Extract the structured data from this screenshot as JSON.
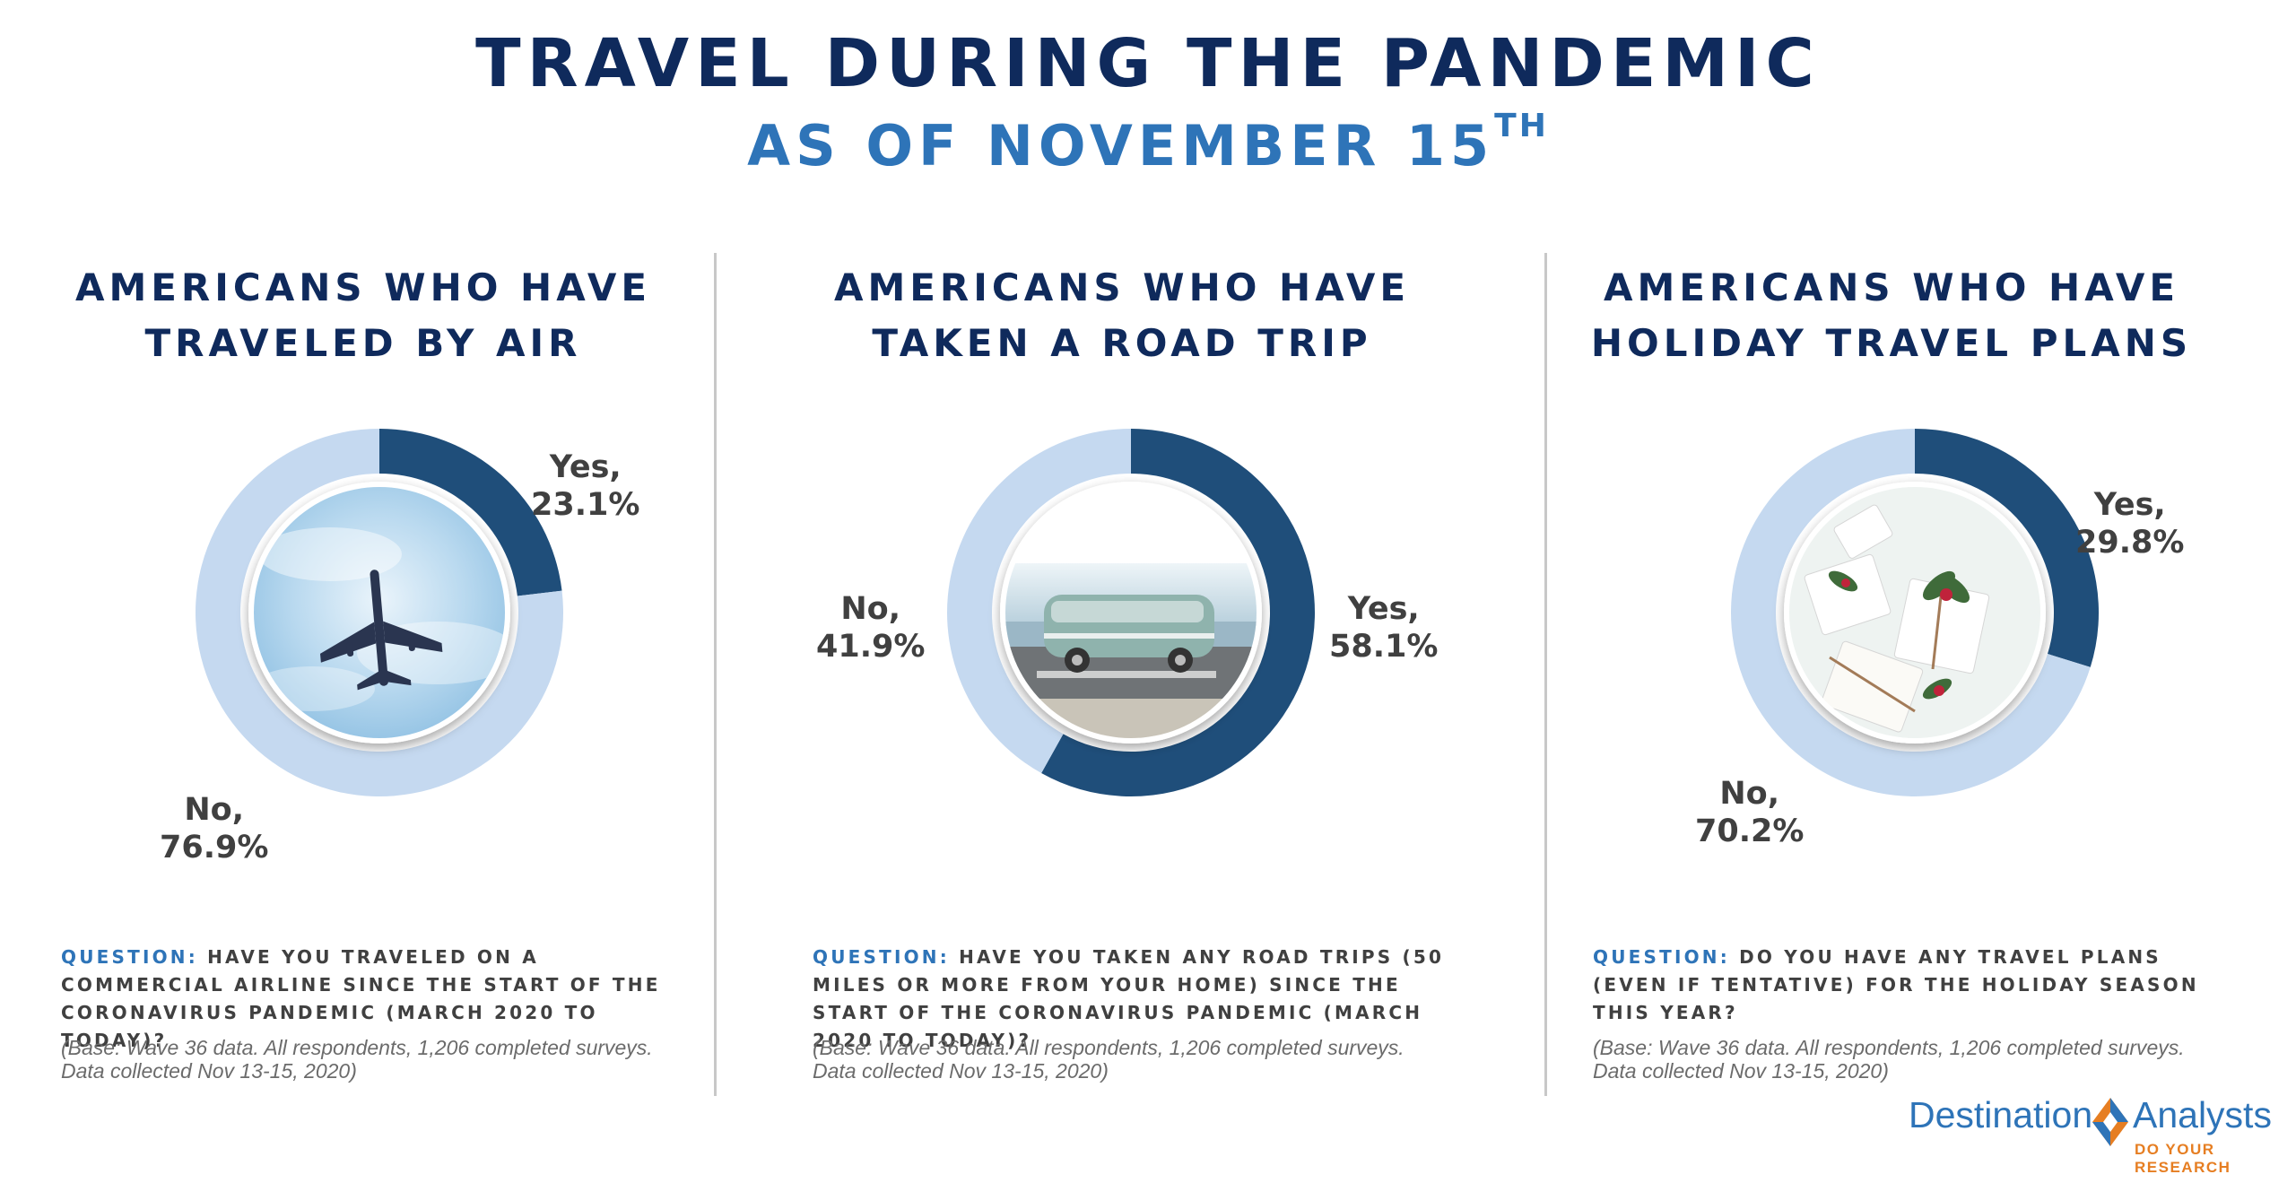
{
  "header": {
    "title": "TRAVEL DURING THE PANDEMIC",
    "subtitle": "AS OF NOVEMBER 15",
    "subtitle_sup": "TH"
  },
  "colors": {
    "yes": "#1f4e7a",
    "no": "#c5d9f0",
    "title": "#0f2a5c",
    "accent": "#2e74b8"
  },
  "chart_data": [
    {
      "type": "pie",
      "variant": "donut",
      "title_lines": [
        "AMERICANS WHO HAVE",
        "TRAVELED BY AIR"
      ],
      "categories": [
        "Yes,",
        "No,"
      ],
      "values": [
        23.1,
        76.9
      ],
      "value_labels": [
        "23.1%",
        "76.9%"
      ],
      "center_image": "airplane-in-clouds"
    },
    {
      "type": "pie",
      "variant": "donut",
      "title_lines": [
        "AMERICANS WHO HAVE",
        "TAKEN A ROAD TRIP"
      ],
      "categories": [
        "Yes,",
        "No,"
      ],
      "values": [
        58.1,
        41.9
      ],
      "value_labels": [
        "58.1%",
        "41.9%"
      ],
      "center_image": "camper-van-by-sea"
    },
    {
      "type": "pie",
      "variant": "donut",
      "title_lines": [
        "AMERICANS WHO HAVE",
        "HOLIDAY TRAVEL PLANS"
      ],
      "categories": [
        "Yes,",
        "No,"
      ],
      "values": [
        29.8,
        70.2
      ],
      "value_labels": [
        "29.8%",
        "70.2%"
      ],
      "center_image": "holiday-gift-boxes"
    }
  ],
  "questions": [
    {
      "label": "QUESTION:",
      "text": "HAVE YOU TRAVELED ON A COMMERCIAL AIRLINE SINCE THE START OF THE CORONAVIRUS PANDEMIC (MARCH 2020 TO TODAY)?",
      "base_line1": "(Base: Wave 36 data. All respondents, 1,206 completed surveys.",
      "base_line2": "Data collected Nov 13-15, 2020)"
    },
    {
      "label": "QUESTION:",
      "text": "HAVE YOU TAKEN ANY ROAD TRIPS (50 MILES OR MORE FROM YOUR HOME)  SINCE THE START OF THE CORONAVIRUS PANDEMIC (MARCH 2020 TO TODAY)?",
      "base_line1": "(Base: Wave 36 data. All respondents, 1,206 completed surveys.",
      "base_line2": "Data collected Nov 13-15, 2020)"
    },
    {
      "label": "QUESTION:",
      "text": "DO YOU HAVE ANY TRAVEL PLANS (EVEN IF TENTATIVE) FOR THE HOLIDAY SEASON THIS YEAR?",
      "base_line1": "(Base: Wave 36 data. All respondents, 1,206 completed surveys.",
      "base_line2": "Data collected Nov 13-15, 2020)"
    }
  ],
  "logo": {
    "word1": "Destination",
    "word2": "Analysts",
    "tagline": "DO YOUR RESEARCH"
  }
}
